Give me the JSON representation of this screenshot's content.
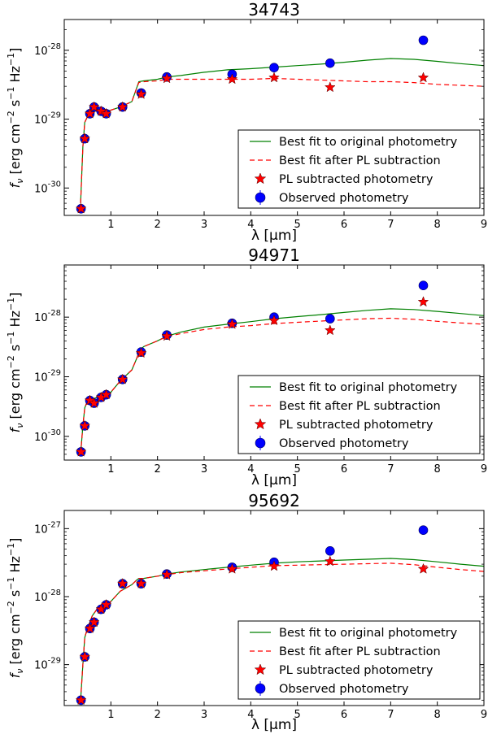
{
  "figure": {
    "legend_entries": [
      "Best fit to original photometry",
      "Best fit after PL subtraction",
      "PL subtracted photometry",
      "Observed photometry"
    ],
    "colors": {
      "original_fit": "#008000",
      "pl_fit": "#ff0000",
      "pl_points": "#ff0000",
      "observed_points": "#0000ff"
    }
  },
  "chart_data": [
    {
      "type": "line",
      "title": "34743",
      "xlabel": "λ [μm]",
      "ylabel": "f_ν [erg cm^-2 s^-1 Hz^-1]",
      "xlim": [
        0,
        9
      ],
      "ylim": [
        4e-31,
        2.8e-28
      ],
      "log_y": true,
      "x_ticks": [
        1,
        2,
        3,
        4,
        5,
        6,
        7,
        8,
        9
      ],
      "y_ticks": [
        {
          "value": 1e-30,
          "exp": "-30"
        },
        {
          "value": 1e-29,
          "exp": "-29"
        },
        {
          "value": 1e-28,
          "exp": "-28"
        }
      ],
      "legend": "lower-right",
      "series": [
        {
          "name": "Best fit to original photometry",
          "style": "line",
          "x": [
            0.35,
            0.4,
            0.44,
            0.5,
            0.55,
            0.6,
            0.7,
            0.8,
            0.9,
            1.0,
            1.2,
            1.45,
            1.55,
            1.6,
            1.7,
            2.0,
            2.2,
            2.5,
            3.0,
            3.5,
            4.0,
            4.5,
            5.0,
            5.5,
            6.0,
            6.5,
            7.0,
            7.5,
            8.0,
            8.5,
            9.0
          ],
          "y": [
            6e-31,
            4e-30,
            9e-30,
            1.1e-29,
            1.3e-29,
            1.35e-29,
            1.3e-29,
            1.3e-29,
            1.3e-29,
            1.35e-29,
            1.5e-29,
            1.8e-29,
            2.8e-29,
            3.5e-29,
            3.6e-29,
            3.8e-29,
            4.1e-29,
            4.3e-29,
            4.8e-29,
            5.2e-29,
            5.4e-29,
            5.7e-29,
            6e-29,
            6.3e-29,
            6.7e-29,
            7.2e-29,
            7.6e-29,
            7.4e-29,
            6.9e-29,
            6.4e-29,
            6e-29
          ]
        },
        {
          "name": "Best fit after PL subtraction",
          "style": "dashed",
          "x": [
            0.35,
            0.4,
            0.44,
            0.5,
            0.55,
            0.6,
            0.7,
            0.8,
            0.9,
            1.0,
            1.2,
            1.45,
            1.55,
            1.6,
            1.7,
            2.0,
            2.2,
            2.5,
            3.0,
            3.5,
            4.0,
            4.5,
            5.0,
            5.5,
            6.0,
            6.5,
            7.0,
            7.5,
            8.0,
            8.5,
            9.0
          ],
          "y": [
            6e-31,
            4e-30,
            9e-30,
            1.1e-29,
            1.3e-29,
            1.35e-29,
            1.3e-29,
            1.3e-29,
            1.3e-29,
            1.35e-29,
            1.5e-29,
            1.8e-29,
            2.8e-29,
            3.4e-29,
            3.5e-29,
            3.6e-29,
            3.8e-29,
            3.8e-29,
            3.8e-29,
            3.8e-29,
            3.8e-29,
            3.9e-29,
            3.8e-29,
            3.7e-29,
            3.6e-29,
            3.5e-29,
            3.5e-29,
            3.4e-29,
            3.2e-29,
            3.1e-29,
            3e-29
          ]
        },
        {
          "name": "PL subtracted photometry",
          "style": "star",
          "x": [
            0.36,
            0.44,
            0.55,
            0.64,
            0.79,
            0.9,
            1.25,
            1.65,
            2.2,
            3.6,
            4.5,
            5.7,
            7.7
          ],
          "y": [
            5e-31,
            5.2e-30,
            1.2e-29,
            1.5e-29,
            1.3e-29,
            1.2e-29,
            1.5e-29,
            2.3e-29,
            3.9e-29,
            3.8e-29,
            4e-29,
            2.9e-29,
            4e-29
          ]
        },
        {
          "name": "Observed photometry",
          "style": "circle",
          "x": [
            0.36,
            0.44,
            0.55,
            0.64,
            0.79,
            0.9,
            1.25,
            1.65,
            2.2,
            3.6,
            4.5,
            5.7,
            7.7
          ],
          "y": [
            5e-31,
            5.2e-30,
            1.2e-29,
            1.5e-29,
            1.3e-29,
            1.2e-29,
            1.5e-29,
            2.4e-29,
            4.1e-29,
            4.5e-29,
            5.6e-29,
            6.5e-29,
            1.4e-28
          ]
        }
      ]
    },
    {
      "type": "line",
      "title": "94971",
      "xlabel": "λ [μm]",
      "ylabel": "f_ν [erg cm^-2 s^-1 Hz^-1]",
      "xlim": [
        0,
        9
      ],
      "ylim": [
        4e-31,
        7.5e-28
      ],
      "log_y": true,
      "x_ticks": [
        1,
        2,
        3,
        4,
        5,
        6,
        7,
        8,
        9
      ],
      "y_ticks": [
        {
          "value": 1e-30,
          "exp": "-30"
        },
        {
          "value": 1e-29,
          "exp": "-29"
        },
        {
          "value": 1e-28,
          "exp": "-28"
        }
      ],
      "legend": "lower-right",
      "series": [
        {
          "name": "Best fit to original photometry",
          "style": "line",
          "x": [
            0.35,
            0.4,
            0.44,
            0.5,
            0.55,
            0.6,
            0.7,
            0.8,
            0.9,
            1.0,
            1.2,
            1.45,
            1.55,
            1.6,
            1.7,
            2.0,
            2.2,
            2.5,
            3.0,
            3.5,
            4.0,
            4.5,
            5.0,
            5.5,
            6.0,
            6.5,
            7.0,
            7.5,
            8.0,
            8.5,
            9.0
          ],
          "y": [
            5e-31,
            1.5e-30,
            3e-30,
            4e-30,
            4e-30,
            4.2e-30,
            4.5e-30,
            4.8e-30,
            5e-30,
            5.5e-30,
            8.5e-30,
            1.3e-29,
            2e-29,
            2.6e-29,
            3.2e-29,
            4e-29,
            4.8e-29,
            5.6e-29,
            6.8e-29,
            7.6e-29,
            8.4e-29,
            9.4e-29,
            1.02e-28,
            1.1e-28,
            1.2e-28,
            1.3e-28,
            1.38e-28,
            1.34e-28,
            1.25e-28,
            1.15e-28,
            1.06e-28
          ]
        },
        {
          "name": "Best fit after PL subtraction",
          "style": "dashed",
          "x": [
            0.35,
            0.4,
            0.44,
            0.5,
            0.55,
            0.6,
            0.7,
            0.8,
            0.9,
            1.0,
            1.2,
            1.45,
            1.55,
            1.6,
            1.7,
            2.0,
            2.2,
            2.5,
            3.0,
            3.5,
            4.0,
            4.5,
            5.0,
            5.5,
            6.0,
            6.5,
            7.0,
            7.5,
            8.0,
            8.5,
            9.0
          ],
          "y": [
            5e-31,
            1.5e-30,
            3e-30,
            4e-30,
            4e-30,
            4.2e-30,
            4.5e-30,
            4.8e-30,
            5e-30,
            5.5e-30,
            8.5e-30,
            1.3e-29,
            2e-29,
            2.6e-29,
            3.2e-29,
            4e-29,
            4.7e-29,
            5.3e-29,
            6.2e-29,
            6.8e-29,
            7.2e-29,
            7.8e-29,
            8.2e-29,
            8.6e-29,
            9e-29,
            9.4e-29,
            9.6e-29,
            9.2e-29,
            8.5e-29,
            8e-29,
            7.6e-29
          ]
        },
        {
          "name": "PL subtracted photometry",
          "style": "star",
          "x": [
            0.36,
            0.44,
            0.55,
            0.64,
            0.79,
            0.9,
            1.25,
            1.65,
            2.2,
            3.6,
            4.5,
            5.7,
            7.7
          ],
          "y": [
            5.5e-31,
            1.5e-30,
            4e-30,
            3.6e-30,
            4.5e-30,
            5e-30,
            9e-30,
            2.5e-29,
            4.8e-29,
            7.6e-29,
            8.8e-29,
            6e-29,
            1.8e-28
          ]
        },
        {
          "name": "Observed photometry",
          "style": "circle",
          "x": [
            0.36,
            0.44,
            0.55,
            0.64,
            0.79,
            0.9,
            1.25,
            1.65,
            2.2,
            3.6,
            4.5,
            5.7,
            7.7
          ],
          "y": [
            5.5e-31,
            1.5e-30,
            4e-30,
            3.6e-30,
            4.5e-30,
            5e-30,
            9e-30,
            2.6e-29,
            5e-29,
            7.9e-29,
            1e-28,
            9.4e-29,
            3.4e-28
          ]
        }
      ]
    },
    {
      "type": "line",
      "title": "95692",
      "xlabel": "λ [μm]",
      "ylabel": "f_ν [erg cm^-2 s^-1 Hz^-1]",
      "xlim": [
        0,
        9
      ],
      "ylim": [
        2.5e-30,
        1.85e-27
      ],
      "log_y": true,
      "x_ticks": [
        1,
        2,
        3,
        4,
        5,
        6,
        7,
        8,
        9
      ],
      "y_ticks": [
        {
          "value": 1e-29,
          "exp": "-29"
        },
        {
          "value": 1e-28,
          "exp": "-28"
        },
        {
          "value": 1e-27,
          "exp": "-27"
        }
      ],
      "legend": "lower-right",
      "series": [
        {
          "name": "Best fit to original photometry",
          "style": "line",
          "x": [
            0.35,
            0.4,
            0.44,
            0.5,
            0.55,
            0.6,
            0.7,
            0.8,
            0.9,
            1.0,
            1.2,
            1.45,
            1.55,
            1.6,
            1.7,
            2.0,
            2.2,
            2.5,
            3.0,
            3.5,
            4.0,
            4.5,
            5.0,
            5.5,
            6.0,
            6.5,
            7.0,
            7.5,
            8.0,
            8.5,
            9.0
          ],
          "y": [
            3e-30,
            1e-29,
            2.5e-29,
            3.5e-29,
            4.2e-29,
            5.2e-29,
            6.5e-29,
            7.2e-29,
            7.6e-29,
            8.5e-29,
            1.2e-28,
            1.5e-28,
            1.75e-28,
            1.85e-28,
            1.85e-28,
            2e-28,
            2.15e-28,
            2.3e-28,
            2.5e-28,
            2.7e-28,
            2.9e-28,
            3.1e-28,
            3.25e-28,
            3.35e-28,
            3.45e-28,
            3.55e-28,
            3.65e-28,
            3.5e-28,
            3.25e-28,
            3e-28,
            2.8e-28
          ]
        },
        {
          "name": "Best fit after PL subtraction",
          "style": "dashed",
          "x": [
            0.35,
            0.4,
            0.44,
            0.5,
            0.55,
            0.6,
            0.7,
            0.8,
            0.9,
            1.0,
            1.2,
            1.45,
            1.55,
            1.6,
            1.7,
            2.0,
            2.2,
            2.5,
            3.0,
            3.5,
            4.0,
            4.5,
            5.0,
            5.5,
            6.0,
            6.5,
            7.0,
            7.5,
            8.0,
            8.5,
            9.0
          ],
          "y": [
            3e-30,
            1e-29,
            2.5e-29,
            3.5e-29,
            4.2e-29,
            5.2e-29,
            6.5e-29,
            7.2e-29,
            7.6e-29,
            8.5e-29,
            1.2e-28,
            1.5e-28,
            1.75e-28,
            1.85e-28,
            1.85e-28,
            2e-28,
            2.1e-28,
            2.25e-28,
            2.4e-28,
            2.55e-28,
            2.7e-28,
            2.85e-28,
            2.9e-28,
            2.95e-28,
            3e-28,
            3.05e-28,
            3.1e-28,
            2.95e-28,
            2.7e-28,
            2.5e-28,
            2.35e-28
          ]
        },
        {
          "name": "PL subtracted photometry",
          "style": "star",
          "x": [
            0.36,
            0.44,
            0.55,
            0.64,
            0.79,
            0.9,
            1.25,
            1.65,
            2.2,
            3.6,
            4.5,
            5.7,
            7.7
          ],
          "y": [
            3e-30,
            1.3e-29,
            3.4e-29,
            4.2e-29,
            6.5e-29,
            7.6e-29,
            1.55e-28,
            1.55e-28,
            2.1e-28,
            2.55e-28,
            2.8e-28,
            3.3e-28,
            2.55e-28
          ]
        },
        {
          "name": "Observed photometry",
          "style": "circle",
          "x": [
            0.36,
            0.44,
            0.55,
            0.64,
            0.79,
            0.9,
            1.25,
            1.65,
            2.2,
            3.6,
            4.5,
            5.7,
            7.7
          ],
          "y": [
            3e-30,
            1.3e-29,
            3.4e-29,
            4.2e-29,
            6.5e-29,
            7.6e-29,
            1.55e-28,
            1.55e-28,
            2.15e-28,
            2.7e-28,
            3.2e-28,
            4.7e-28,
            9.5e-28
          ]
        }
      ]
    }
  ]
}
